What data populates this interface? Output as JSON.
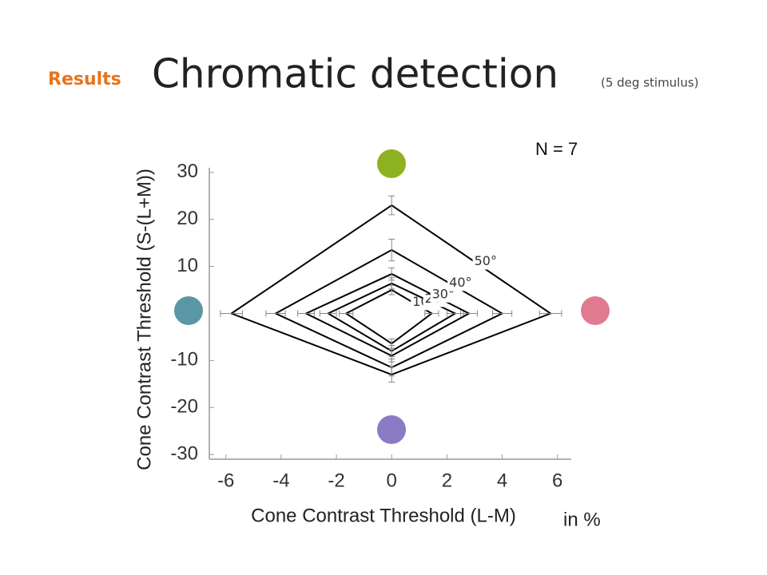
{
  "header": {
    "section": "Results",
    "title": "Chromatic detection",
    "subtitle": "(5 deg stimulus)"
  },
  "chart_data": {
    "type": "diamond",
    "xlabel": "Cone Contrast Threshold (L-M)",
    "ylabel": "Cone Contrast Threshold (S-(L+M))",
    "annotations": [
      "N = 7",
      "in %"
    ],
    "xlim": [
      -6.6,
      6.5
    ],
    "xticks": [
      -6,
      -4,
      -2,
      0,
      2,
      4,
      6
    ],
    "ylim": [
      -31,
      31
    ],
    "yticks": [
      30,
      20,
      10,
      -10,
      -20,
      -30
    ],
    "series": [
      {
        "name": "10°",
        "color": "#000000",
        "x": [
          -1.65,
          0,
          1.45,
          0
        ],
        "y": [
          0,
          5,
          0,
          -6.4
        ],
        "xerr": [
          0.25,
          0,
          0.25,
          0
        ],
        "yerr": [
          0,
          1,
          0,
          1
        ]
      },
      {
        "name": "20°",
        "color": "#000000",
        "x": [
          -2.3,
          0,
          2.3,
          0
        ],
        "y": [
          0,
          6.4,
          0,
          -8
        ],
        "xerr": [
          0.3,
          0,
          0.3,
          0
        ],
        "yerr": [
          0,
          1.2,
          0,
          1.2
        ]
      },
      {
        "name": "30°",
        "color": "#000000",
        "x": [
          -3.1,
          0,
          2.8,
          0
        ],
        "y": [
          0,
          8.4,
          0,
          -9
        ],
        "xerr": [
          0.3,
          0,
          0.3,
          0
        ],
        "yerr": [
          0,
          1.3,
          0,
          1.3
        ]
      },
      {
        "name": "40°",
        "color": "#000000",
        "x": [
          -4.2,
          0,
          4,
          0
        ],
        "y": [
          0,
          13.5,
          0,
          -11.5
        ],
        "xerr": [
          0.35,
          0,
          0.35,
          0
        ],
        "yerr": [
          0,
          2.3,
          0,
          1.8
        ]
      },
      {
        "name": "50°",
        "color": "#000000",
        "x": [
          -5.8,
          0,
          5.75,
          0
        ],
        "y": [
          0,
          23,
          0,
          -13
        ],
        "xerr": [
          0.4,
          0,
          0.4,
          0
        ],
        "yerr": [
          0,
          2,
          0,
          1.6
        ]
      }
    ]
  }
}
